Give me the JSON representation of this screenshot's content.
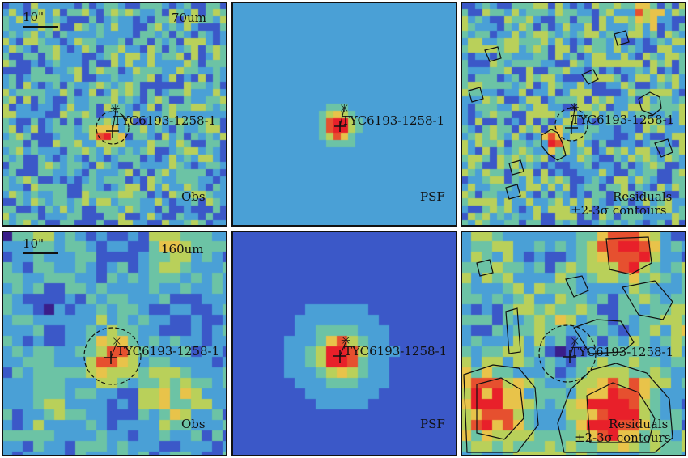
{
  "colors": {
    "frame": "#111111",
    "colormap": [
      "#3a1e8a",
      "#3b58c8",
      "#4aa0d6",
      "#6cc3a5",
      "#b9d05a",
      "#e8c34a",
      "#e6502f",
      "#e8202a"
    ]
  },
  "panels": [
    {
      "id": "obs-70",
      "row": 0,
      "col": 0,
      "band": "70um",
      "corner_label": "Obs",
      "scale_label": "10\"",
      "star_name": "TYC6193-1258-1",
      "circle": true,
      "contours": false
    },
    {
      "id": "psf-70",
      "row": 0,
      "col": 1,
      "band": "",
      "corner_label": "PSF",
      "scale_label": "",
      "star_name": "TYC6193-1258-1",
      "circle": false,
      "contours": false
    },
    {
      "id": "res-70",
      "row": 0,
      "col": 2,
      "band": "",
      "corner_label": "Residuals",
      "corner_label2": "±2-3σ contours",
      "scale_label": "",
      "star_name": "TYC6193-1258-1",
      "circle": true,
      "contours": true
    },
    {
      "id": "obs-160",
      "row": 1,
      "col": 0,
      "band": "160um",
      "corner_label": "Obs",
      "scale_label": "10\"",
      "star_name": "TYC6193-1258-1",
      "circle": true,
      "contours": false
    },
    {
      "id": "psf-160",
      "row": 1,
      "col": 1,
      "band": "",
      "corner_label": "PSF",
      "scale_label": "",
      "star_name": "TYC6193-1258-1",
      "circle": false,
      "contours": false
    },
    {
      "id": "res-160",
      "row": 1,
      "col": 2,
      "band": "",
      "corner_label": "Residuals",
      "corner_label2": "±2-3σ contours",
      "scale_label": "",
      "star_name": "TYC6193-1258-1",
      "circle": true,
      "contours": true
    }
  ],
  "markers": {
    "star_symbol": "✳",
    "cross_symbol": "+"
  }
}
